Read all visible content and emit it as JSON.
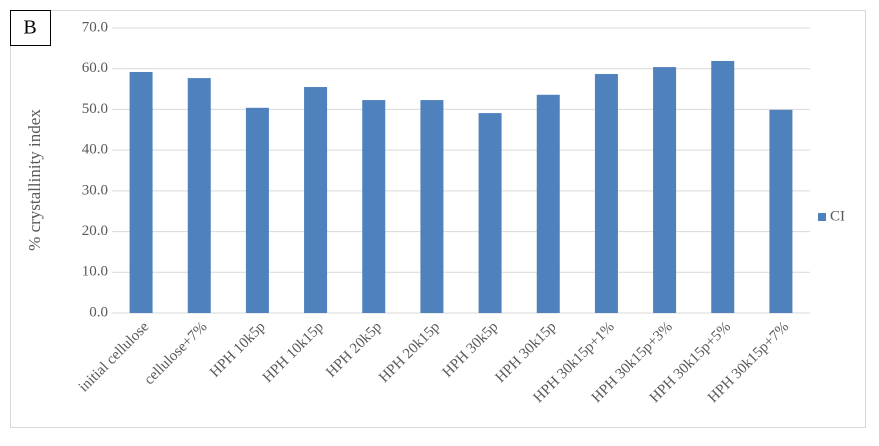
{
  "panel_label": "B",
  "chart_data": {
    "type": "bar",
    "y_label": "% crystallinity index",
    "categories": [
      "initial cellulose",
      "cellulose+7%",
      "HPH 10k5p",
      "HPH 10k15p",
      "HPH 20k5p",
      "HPH 20k15p",
      "HPH 30k5p",
      "HPH 30k15p",
      "HPH 30k15p+1%",
      "HPH 30k15p+3%",
      "HPH 30k15p+5%",
      "HPH 30k15p+7%"
    ],
    "series": [
      {
        "name": "CI",
        "color": "#4f81bd",
        "values": [
          59.2,
          57.7,
          50.4,
          55.5,
          52.3,
          52.3,
          49.1,
          53.6,
          58.7,
          60.4,
          61.9,
          49.9
        ]
      }
    ],
    "ylim": [
      0,
      70
    ],
    "yticks": [
      {
        "value": 0,
        "label": "0.0"
      },
      {
        "value": 10,
        "label": "10.0"
      },
      {
        "value": 20,
        "label": "20.0"
      },
      {
        "value": 30,
        "label": "30.0"
      },
      {
        "value": 40,
        "label": "40.0"
      },
      {
        "value": 50,
        "label": "50.0"
      },
      {
        "value": 60,
        "label": "60.0"
      },
      {
        "value": 70,
        "label": "70.0"
      }
    ],
    "grid": true,
    "legend": "right"
  }
}
